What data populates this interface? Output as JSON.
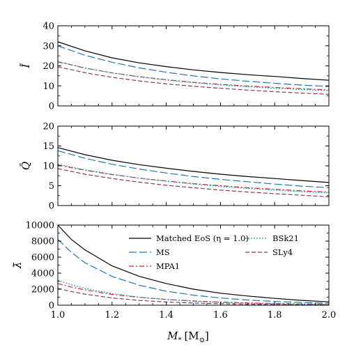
{
  "figure": {
    "xlabel_main": "M",
    "xlabel_sub": "*",
    "xlabel_unit": "[M",
    "xlabel_unit_sub": "⊙",
    "xlabel_close": "]"
  },
  "chart_data": [
    {
      "type": "line",
      "panel": "I",
      "ylabel": "Ī",
      "xlim": [
        1.0,
        2.0
      ],
      "ylim": [
        0,
        40
      ],
      "xticks": [
        1.0,
        1.2,
        1.4,
        1.6,
        1.8,
        2.0
      ],
      "yticks": [
        0,
        10,
        20,
        30,
        40
      ],
      "grid": false,
      "x": [
        1.0,
        1.1,
        1.2,
        1.3,
        1.4,
        1.5,
        1.6,
        1.7,
        1.8,
        1.9,
        2.0
      ],
      "series": [
        {
          "name": "Matched EoS (η = 1.0)",
          "color": "#000000",
          "dash": "solid",
          "values": [
            32.0,
            27.5,
            24.0,
            21.5,
            19.6,
            18.0,
            16.7,
            15.6,
            14.7,
            13.7,
            12.8
          ]
        },
        {
          "name": "MS",
          "color": "#1f77b4",
          "dash": "long",
          "values": [
            30.0,
            25.3,
            21.8,
            19.0,
            16.8,
            15.0,
            13.5,
            12.3,
            11.3,
            10.4,
            9.7
          ]
        },
        {
          "name": "MPA1",
          "color": "#d62728",
          "dash": "dashdot",
          "values": [
            22.0,
            18.9,
            16.5,
            14.6,
            13.1,
            11.8,
            10.8,
            9.9,
            9.2,
            8.6,
            8.0
          ]
        },
        {
          "name": "BSk21",
          "color": "#17a2b8",
          "dash": "dotted",
          "values": [
            22.2,
            19.0,
            16.5,
            14.5,
            12.9,
            11.6,
            10.5,
            9.6,
            8.8,
            8.2,
            7.6
          ]
        },
        {
          "name": "SLy4",
          "color": "#8c3a4a",
          "dash": "dashed",
          "values": [
            19.5,
            16.6,
            14.3,
            12.5,
            11.0,
            9.8,
            8.8,
            7.9,
            7.1,
            6.4,
            5.8
          ]
        }
      ]
    },
    {
      "type": "line",
      "panel": "Q",
      "ylabel": "Q̄",
      "xlim": [
        1.0,
        2.0
      ],
      "ylim": [
        0,
        20
      ],
      "xticks": [
        1.0,
        1.2,
        1.4,
        1.6,
        1.8,
        2.0
      ],
      "yticks": [
        0,
        5,
        10,
        15,
        20
      ],
      "grid": false,
      "x": [
        1.0,
        1.1,
        1.2,
        1.3,
        1.4,
        1.5,
        1.6,
        1.7,
        1.8,
        1.9,
        2.0
      ],
      "series": [
        {
          "name": "Matched EoS (η = 1.0)",
          "color": "#000000",
          "dash": "solid",
          "values": [
            14.6,
            12.8,
            11.4,
            10.3,
            9.4,
            8.6,
            7.9,
            7.3,
            6.8,
            6.3,
            5.8
          ]
        },
        {
          "name": "MS",
          "color": "#1f77b4",
          "dash": "long",
          "values": [
            13.8,
            11.9,
            10.4,
            9.2,
            8.2,
            7.3,
            6.6,
            6.0,
            5.4,
            4.9,
            4.5
          ]
        },
        {
          "name": "MPA1",
          "color": "#d62728",
          "dash": "dashdot",
          "values": [
            10.2,
            8.9,
            7.8,
            6.9,
            6.2,
            5.5,
            5.0,
            4.5,
            4.1,
            3.7,
            3.4
          ]
        },
        {
          "name": "BSk21",
          "color": "#17a2b8",
          "dash": "dotted",
          "values": [
            10.4,
            9.0,
            7.9,
            6.9,
            6.1,
            5.4,
            4.8,
            4.3,
            3.9,
            3.5,
            3.2
          ]
        },
        {
          "name": "SLy4",
          "color": "#8c3a4a",
          "dash": "dashed",
          "values": [
            9.3,
            7.9,
            6.8,
            5.9,
            5.1,
            4.5,
            3.9,
            3.4,
            3.0,
            2.6,
            2.2
          ]
        }
      ]
    },
    {
      "type": "line",
      "panel": "lambda",
      "ylabel": "λ̄",
      "xlabel": "M* [M⊙]",
      "xlim": [
        1.0,
        2.0
      ],
      "ylim": [
        0,
        10000
      ],
      "xticks": [
        1.0,
        1.2,
        1.4,
        1.6,
        1.8,
        2.0
      ],
      "yticks": [
        0,
        2000,
        4000,
        6000,
        8000,
        10000
      ],
      "grid": false,
      "legend": "upper-right, two columns",
      "x": [
        1.0,
        1.05,
        1.1,
        1.2,
        1.3,
        1.4,
        1.5,
        1.6,
        1.7,
        1.8,
        1.9,
        2.0
      ],
      "series": [
        {
          "name": "Matched EoS (η = 1.0)",
          "color": "#000000",
          "dash": "solid",
          "values": [
            10000,
            8200,
            6900,
            4900,
            3600,
            2700,
            2000,
            1500,
            1150,
            850,
            600,
            420
          ]
        },
        {
          "name": "MS",
          "color": "#1f77b4",
          "dash": "long",
          "values": [
            8200,
            6600,
            5300,
            3600,
            2500,
            1750,
            1250,
            900,
            650,
            470,
            340,
            250
          ]
        },
        {
          "name": "MPA1",
          "color": "#d62728",
          "dash": "dashdot",
          "values": [
            2700,
            2250,
            1900,
            1350,
            980,
            720,
            530,
            390,
            290,
            215,
            160,
            120
          ]
        },
        {
          "name": "BSk21",
          "color": "#17a2b8",
          "dash": "dotted",
          "values": [
            3100,
            2550,
            2100,
            1450,
            1000,
            700,
            490,
            340,
            240,
            170,
            120,
            85
          ]
        },
        {
          "name": "SLy4",
          "color": "#8c3a4a",
          "dash": "dashed",
          "values": [
            2100,
            1700,
            1380,
            900,
            600,
            400,
            270,
            180,
            120,
            80,
            55,
            40
          ]
        }
      ]
    }
  ]
}
